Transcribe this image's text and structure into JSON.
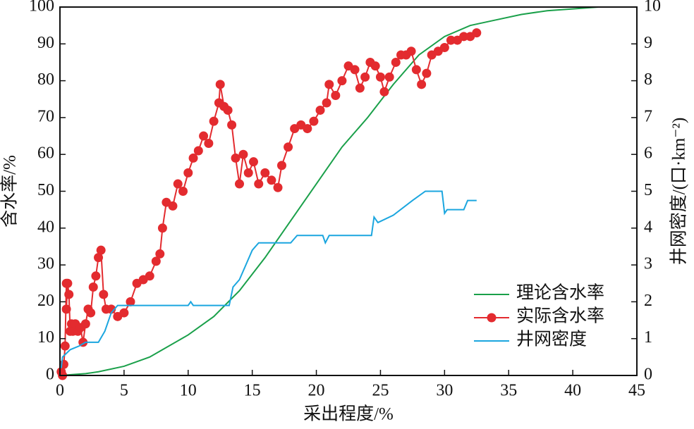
{
  "chart_data": {
    "type": "line",
    "xlabel": "采出程度/%",
    "ylabel": "含水率/%",
    "y2label": "井网密度/(口·km⁻²)",
    "xlim": [
      0,
      45
    ],
    "xticks": [
      0,
      5,
      10,
      15,
      20,
      25,
      30,
      35,
      40,
      45
    ],
    "ylim": [
      0,
      100
    ],
    "yticks": [
      0,
      10,
      20,
      30,
      40,
      50,
      60,
      70,
      80,
      90,
      100
    ],
    "y2lim": [
      0,
      10
    ],
    "y2ticks": [
      0,
      1,
      2,
      3,
      4,
      5,
      6,
      7,
      8,
      9,
      10
    ],
    "legend": "lower right",
    "series": [
      {
        "name": "理论含水率",
        "color": "#1aa04a",
        "marker": false,
        "x": [
          0,
          2,
          3,
          5,
          7,
          8,
          10,
          12,
          14,
          16,
          18,
          20,
          22,
          24,
          26,
          28,
          30,
          32,
          34,
          36,
          38,
          40,
          42,
          45
        ],
        "values": [
          0,
          0.5,
          1,
          2.5,
          5,
          7,
          11,
          16,
          23,
          32,
          42,
          52,
          62,
          70,
          79,
          87,
          92,
          95,
          96.5,
          98,
          99,
          99.5,
          100,
          100
        ]
      },
      {
        "name": "实际含水率",
        "color": "#e32b2f",
        "marker": true,
        "x": [
          0.1,
          0.2,
          0.3,
          0.4,
          0.5,
          0.5,
          0.6,
          0.7,
          0.8,
          0.9,
          1.0,
          1.2,
          1.4,
          1.6,
          1.8,
          2.0,
          2.2,
          2.4,
          2.6,
          2.8,
          3.0,
          3.2,
          3.4,
          3.6,
          4.0,
          4.5,
          5.0,
          5.5,
          6.0,
          6.5,
          7.0,
          7.5,
          7.8,
          8.0,
          8.3,
          8.8,
          9.2,
          9.6,
          10.0,
          10.4,
          10.8,
          11.2,
          11.6,
          12.0,
          12.4,
          12.5,
          12.8,
          13.1,
          13.4,
          13.7,
          14.0,
          14.3,
          14.7,
          15.1,
          15.5,
          16.0,
          16.5,
          17.0,
          17.3,
          17.8,
          18.3,
          18.8,
          19.3,
          19.8,
          20.3,
          20.8,
          21.0,
          21.5,
          22.0,
          22.5,
          23.0,
          23.4,
          23.8,
          24.2,
          24.6,
          25.0,
          25.3,
          25.7,
          26.2,
          26.6,
          27.0,
          27.4,
          27.8,
          28.2,
          28.6,
          29.0,
          29.5,
          30.0,
          30.5,
          31.0,
          31.5,
          32.0,
          32.5
        ],
        "values": [
          1,
          0,
          3,
          8,
          25,
          18,
          25,
          22,
          12,
          14,
          12,
          14,
          12,
          13,
          9,
          14,
          18,
          17,
          24,
          27,
          32,
          34,
          22,
          18,
          18,
          16,
          17,
          20,
          25,
          26,
          27,
          31,
          33,
          40,
          47,
          46,
          52,
          50,
          55,
          59,
          61,
          65,
          63,
          69,
          74,
          79,
          73,
          72,
          68,
          59,
          52,
          60,
          55,
          58,
          52,
          55,
          53,
          51,
          57,
          62,
          67,
          68,
          67,
          69,
          72,
          74,
          79,
          76,
          80,
          84,
          83,
          78,
          81,
          85,
          84,
          81,
          77,
          81,
          85,
          87,
          87,
          88,
          83,
          79,
          82,
          87,
          88,
          89,
          91,
          91,
          92,
          92,
          93
        ]
      },
      {
        "name": "井网密度",
        "color": "#1ba6df",
        "marker": false,
        "axis": "y2",
        "x": [
          0.1,
          0.2,
          0.8,
          1.5,
          2,
          3,
          3.5,
          4,
          4.5,
          10,
          10.2,
          10.4,
          13.2,
          13.5,
          14,
          14.5,
          15,
          15.5,
          18,
          18.5,
          20.5,
          20.7,
          21,
          24.3,
          24.5,
          24.8,
          26,
          27.5,
          28.5,
          29.8,
          30,
          30.2,
          31.5,
          31.8,
          32.5
        ],
        "values": [
          0.2,
          0.5,
          0.7,
          0.8,
          0.9,
          0.9,
          1.2,
          1.7,
          1.9,
          1.9,
          2.0,
          1.9,
          1.9,
          2.4,
          2.6,
          3.0,
          3.4,
          3.6,
          3.6,
          3.8,
          3.8,
          3.6,
          3.8,
          3.8,
          4.3,
          4.15,
          4.35,
          4.75,
          5.0,
          5.0,
          4.4,
          4.5,
          4.5,
          4.75,
          4.75
        ]
      }
    ]
  }
}
